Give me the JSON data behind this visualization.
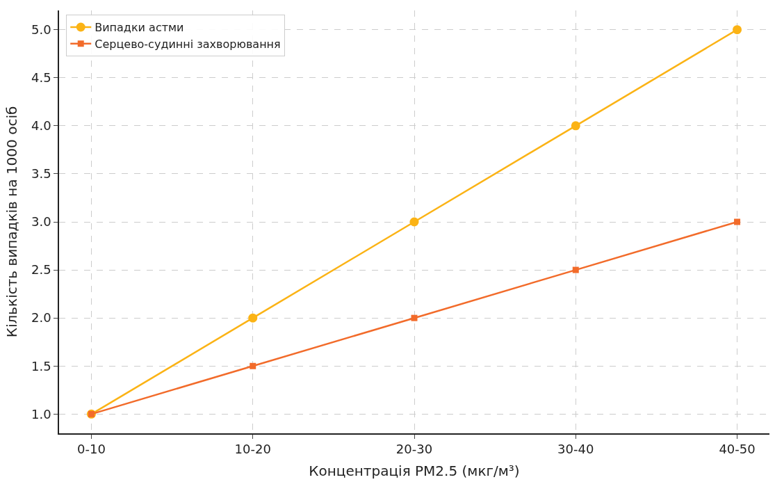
{
  "chart_data": {
    "type": "line",
    "xlabel": "Концентрація PM2.5 (мкг/м³)",
    "ylabel": "Кількість випадків на 1000 осіб",
    "categories": [
      "0-10",
      "10-20",
      "20-30",
      "30-40",
      "40-50"
    ],
    "series": [
      {
        "name": "Випадки астми",
        "color": "#fbb315",
        "values": [
          1.0,
          2.0,
          3.0,
          4.0,
          5.0
        ],
        "marker": "circle"
      },
      {
        "name": "Серцево-судинні захворювання",
        "color": "#f26b2a",
        "values": [
          1.0,
          1.5,
          2.0,
          2.5,
          3.0
        ],
        "marker": "square"
      }
    ],
    "ylim": [
      0.8,
      5.2
    ],
    "yticks": [
      {
        "value": 1,
        "label": "1.0"
      },
      1.5,
      {
        "value": 2,
        "label": "2.0"
      },
      2.5,
      {
        "value": 3,
        "label": "3.0"
      },
      3.5,
      {
        "value": 4,
        "label": "4.0"
      },
      4.5,
      {
        "value": 5,
        "label": "5.0"
      }
    ],
    "grid": true,
    "legend": "top left",
    "line_style": "solid"
  }
}
